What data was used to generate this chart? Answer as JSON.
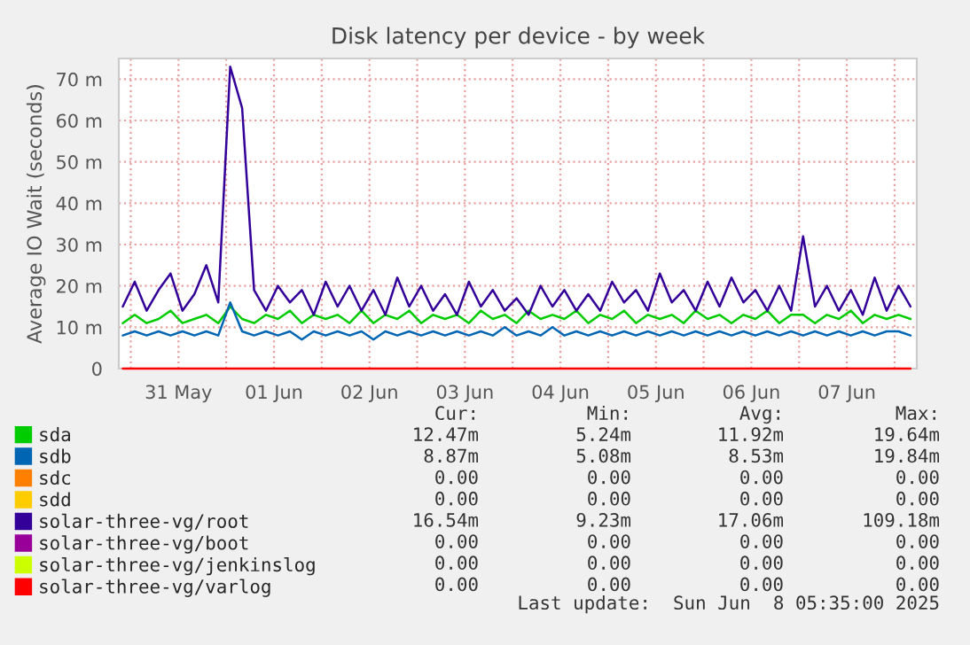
{
  "chart_data": {
    "type": "line",
    "title": "Disk latency per device - by week",
    "ylabel": "Average IO Wait (seconds)",
    "x": [
      "2025-05-30T22:00",
      "2025-05-31T01:00",
      "2025-05-31T04:00",
      "2025-05-31T07:00",
      "2025-05-31T10:00",
      "2025-05-31T13:00",
      "2025-05-31T16:00",
      "2025-05-31T19:00",
      "2025-05-31T22:00",
      "2025-06-01T01:00",
      "2025-06-01T04:00",
      "2025-06-01T07:00",
      "2025-06-01T10:00",
      "2025-06-01T13:00",
      "2025-06-01T16:00",
      "2025-06-01T19:00",
      "2025-06-01T22:00",
      "2025-06-02T01:00",
      "2025-06-02T04:00",
      "2025-06-02T07:00",
      "2025-06-02T10:00",
      "2025-06-02T13:00",
      "2025-06-02T16:00",
      "2025-06-02T19:00",
      "2025-06-02T22:00",
      "2025-06-03T01:00",
      "2025-06-03T04:00",
      "2025-06-03T07:00",
      "2025-06-03T10:00",
      "2025-06-03T13:00",
      "2025-06-03T16:00",
      "2025-06-03T19:00",
      "2025-06-03T22:00",
      "2025-06-04T01:00",
      "2025-06-04T04:00",
      "2025-06-04T07:00",
      "2025-06-04T10:00",
      "2025-06-04T13:00",
      "2025-06-04T16:00",
      "2025-06-04T19:00",
      "2025-06-04T22:00",
      "2025-06-05T01:00",
      "2025-06-05T04:00",
      "2025-06-05T07:00",
      "2025-06-05T10:00",
      "2025-06-05T13:00",
      "2025-06-05T16:00",
      "2025-06-05T19:00",
      "2025-06-05T22:00",
      "2025-06-06T01:00",
      "2025-06-06T04:00",
      "2025-06-06T07:00",
      "2025-06-06T10:00",
      "2025-06-06T13:00",
      "2025-06-06T16:00",
      "2025-06-06T19:00",
      "2025-06-06T22:00",
      "2025-06-07T01:00",
      "2025-06-07T04:00",
      "2025-06-07T07:00",
      "2025-06-07T10:00",
      "2025-06-07T13:00",
      "2025-06-07T16:00",
      "2025-06-07T19:00",
      "2025-06-07T22:00",
      "2025-06-08T01:00",
      "2025-06-08T04:00"
    ],
    "series": [
      {
        "name": "sda",
        "color": "#00cc00",
        "values": [
          11,
          13,
          11,
          12,
          14,
          11,
          12,
          13,
          11,
          15,
          12,
          11,
          13,
          12,
          14,
          11,
          13,
          12,
          13,
          11,
          14,
          11,
          13,
          12,
          14,
          11,
          13,
          12,
          13,
          11,
          14,
          12,
          13,
          11,
          14,
          12,
          13,
          12,
          14,
          11,
          13,
          12,
          14,
          11,
          13,
          12,
          13,
          11,
          14,
          12,
          13,
          11,
          13,
          12,
          14,
          11,
          13,
          13,
          11,
          13,
          12,
          14,
          11,
          13,
          12,
          13,
          12
        ]
      },
      {
        "name": "sdb",
        "color": "#0066b3",
        "values": [
          8,
          9,
          8,
          9,
          8,
          9,
          8,
          9,
          8,
          16,
          9,
          8,
          9,
          8,
          9,
          7,
          9,
          8,
          9,
          8,
          9,
          7,
          9,
          8,
          9,
          8,
          9,
          8,
          9,
          8,
          9,
          8,
          10,
          8,
          9,
          8,
          10,
          8,
          9,
          8,
          9,
          8,
          9,
          8,
          9,
          8,
          9,
          8,
          9,
          8,
          9,
          8,
          9,
          8,
          9,
          8,
          9,
          8,
          9,
          8,
          9,
          8,
          9,
          8,
          9,
          9,
          8
        ]
      },
      {
        "name": "sdc",
        "color": "#ff8000",
        "values": [
          null,
          null,
          null,
          null,
          null,
          null,
          null,
          null,
          null,
          null,
          null,
          null,
          null,
          null,
          null,
          null,
          null,
          null,
          null,
          null,
          null,
          null,
          null,
          null,
          null,
          null,
          null,
          null,
          null,
          null,
          null,
          null,
          null,
          null,
          null,
          null,
          null,
          null,
          null,
          null,
          null,
          null,
          null,
          null,
          null,
          null,
          null,
          null,
          null,
          null,
          null,
          null,
          null,
          null,
          null,
          null,
          null,
          null,
          null,
          null,
          null,
          null,
          null,
          null,
          null,
          null,
          null
        ]
      },
      {
        "name": "sdd",
        "color": "#ffcc00",
        "values": [
          null,
          null,
          null,
          null,
          null,
          null,
          null,
          null,
          null,
          null,
          null,
          null,
          null,
          null,
          null,
          null,
          null,
          null,
          null,
          null,
          null,
          null,
          null,
          null,
          null,
          null,
          null,
          null,
          null,
          null,
          null,
          null,
          null,
          null,
          null,
          null,
          null,
          null,
          null,
          null,
          null,
          null,
          null,
          null,
          null,
          null,
          null,
          null,
          null,
          null,
          null,
          null,
          null,
          null,
          null,
          null,
          null,
          null,
          null,
          null,
          null,
          null,
          null,
          null,
          null,
          null,
          null
        ]
      },
      {
        "name": "solar-three-vg/root",
        "color": "#330099",
        "values": [
          15,
          21,
          14,
          19,
          23,
          14,
          18,
          25,
          16,
          73,
          63,
          19,
          14,
          20,
          16,
          19,
          13,
          21,
          15,
          20,
          14,
          19,
          13,
          22,
          15,
          20,
          14,
          18,
          13,
          21,
          15,
          19,
          14,
          17,
          13,
          20,
          15,
          19,
          14,
          18,
          14,
          21,
          16,
          19,
          14,
          23,
          16,
          19,
          14,
          21,
          15,
          22,
          16,
          19,
          14,
          20,
          14,
          32,
          15,
          20,
          14,
          19,
          13,
          22,
          14,
          20,
          15
        ]
      },
      {
        "name": "solar-three-vg/boot",
        "color": "#990099",
        "values": [
          null,
          null,
          null,
          null,
          null,
          null,
          null,
          null,
          null,
          null,
          null,
          null,
          null,
          null,
          null,
          null,
          null,
          null,
          null,
          null,
          null,
          null,
          null,
          null,
          null,
          null,
          null,
          null,
          null,
          null,
          null,
          null,
          null,
          null,
          null,
          null,
          null,
          null,
          null,
          null,
          null,
          null,
          null,
          null,
          null,
          null,
          null,
          null,
          null,
          null,
          null,
          null,
          null,
          null,
          null,
          null,
          null,
          null,
          null,
          null,
          null,
          null,
          null,
          null,
          null,
          null,
          null
        ]
      },
      {
        "name": "solar-three-vg/jenkinslog",
        "color": "#ccff00",
        "values": [
          null,
          null,
          null,
          null,
          null,
          null,
          null,
          null,
          null,
          null,
          null,
          null,
          null,
          null,
          null,
          null,
          null,
          null,
          null,
          null,
          null,
          null,
          null,
          null,
          null,
          null,
          null,
          null,
          null,
          null,
          null,
          null,
          null,
          null,
          null,
          null,
          null,
          null,
          null,
          null,
          null,
          null,
          null,
          null,
          null,
          null,
          null,
          null,
          null,
          null,
          null,
          null,
          null,
          null,
          null,
          null,
          null,
          null,
          null,
          null,
          null,
          null,
          null,
          null,
          null,
          null,
          null
        ]
      },
      {
        "name": "solar-three-vg/varlog",
        "color": "#ff0000",
        "x": [
          "2025-05-30T22:00",
          "2025-06-08T04:00"
        ],
        "values": [
          0,
          0
        ]
      }
    ],
    "xlim": [
      "2025-05-30T21:00",
      "2025-06-08T05:35"
    ],
    "xticks": [
      {
        "value": "2025-05-31",
        "label": null
      },
      {
        "value": "2025-05-31T12:00",
        "label": "31 May"
      },
      {
        "value": "2025-06-01",
        "label": null
      },
      {
        "value": "2025-06-01T12:00",
        "label": "01 Jun"
      },
      {
        "value": "2025-06-02",
        "label": null
      },
      {
        "value": "2025-06-02T12:00",
        "label": "02 Jun"
      },
      {
        "value": "2025-06-03",
        "label": null
      },
      {
        "value": "2025-06-03T12:00",
        "label": "03 Jun"
      },
      {
        "value": "2025-06-04",
        "label": null
      },
      {
        "value": "2025-06-04T12:00",
        "label": "04 Jun"
      },
      {
        "value": "2025-06-05",
        "label": null
      },
      {
        "value": "2025-06-05T12:00",
        "label": "05 Jun"
      },
      {
        "value": "2025-06-06",
        "label": null
      },
      {
        "value": "2025-06-06T12:00",
        "label": "06 Jun"
      },
      {
        "value": "2025-06-07",
        "label": null
      },
      {
        "value": "2025-06-07T12:00",
        "label": "07 Jun"
      },
      {
        "value": "2025-06-08",
        "label": null
      }
    ],
    "ylim": [
      0,
      75
    ],
    "yticks": [
      0,
      {
        "value": 10,
        "label": "10 m"
      },
      {
        "value": 20,
        "label": "20 m"
      },
      {
        "value": 30,
        "label": "30 m"
      },
      {
        "value": 40,
        "label": "40 m"
      },
      {
        "value": 50,
        "label": "50 m"
      },
      {
        "value": 60,
        "label": "60 m"
      },
      {
        "value": 70,
        "label": "70 m"
      }
    ],
    "grid": true,
    "legend": "bottom left",
    "annotations": [
      "Cur:",
      "Min:",
      "Avg:",
      "Max:",
      "12.47m",
      "5.24m",
      "11.92m",
      "19.64m",
      "8.87m",
      "5.08m",
      "8.53m",
      "19.84m",
      "0.00",
      "0.00",
      "0.00",
      "0.00",
      "0.00",
      "0.00",
      "0.00",
      "0.00",
      "16.54m",
      "9.23m",
      "17.06m",
      "109.18m",
      "0.00",
      "0.00",
      "0.00",
      "0.00",
      "0.00",
      "0.00",
      "0.00",
      "0.00",
      "0.00",
      "0.00",
      "0.00",
      "0.00",
      "Last update:  Sun Jun  8 05:35:00 2025"
    ]
  }
}
